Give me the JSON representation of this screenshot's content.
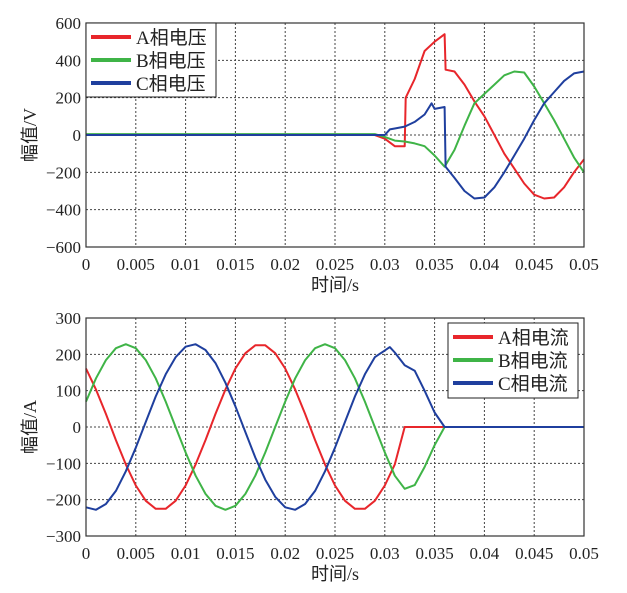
{
  "chart_data": [
    {
      "type": "line",
      "xlabel": "时间/s",
      "ylabel": "幅值/V",
      "xlim": [
        0,
        0.05
      ],
      "ylim": [
        -600,
        600
      ],
      "xticks": [
        "0",
        "0.005",
        "0.01",
        "0.015",
        "0.02",
        "0.025",
        "0.03",
        "0.035",
        "0.04",
        "0.045",
        "0.05"
      ],
      "yticks": [
        "600",
        "400",
        "200",
        "0",
        "−200",
        "−400",
        "−600"
      ],
      "grid": true,
      "legend_position": "top-left",
      "series": [
        {
          "name": "A相电压",
          "color": "#e8262b",
          "points": [
            [
              0,
              0
            ],
            [
              0.029,
              0
            ],
            [
              0.03,
              -20
            ],
            [
              0.031,
              -60
            ],
            [
              0.032,
              -60
            ],
            [
              0.0321,
              200
            ],
            [
              0.033,
              300
            ],
            [
              0.034,
              450
            ],
            [
              0.035,
              500
            ],
            [
              0.036,
              540
            ],
            [
              0.0361,
              350
            ],
            [
              0.037,
              340
            ],
            [
              0.038,
              270
            ],
            [
              0.039,
              180
            ],
            [
              0.04,
              100
            ],
            [
              0.041,
              0
            ],
            [
              0.042,
              -100
            ],
            [
              0.043,
              -180
            ],
            [
              0.044,
              -260
            ],
            [
              0.045,
              -320
            ],
            [
              0.046,
              -340
            ],
            [
              0.047,
              -335
            ],
            [
              0.048,
              -280
            ],
            [
              0.049,
              -200
            ],
            [
              0.05,
              -130
            ]
          ]
        },
        {
          "name": "B相电压",
          "color": "#3fb447",
          "points": [
            [
              0,
              5
            ],
            [
              0.029,
              5
            ],
            [
              0.03,
              -10
            ],
            [
              0.031,
              -30
            ],
            [
              0.032,
              -35
            ],
            [
              0.033,
              -45
            ],
            [
              0.034,
              -60
            ],
            [
              0.035,
              -110
            ],
            [
              0.036,
              -170
            ],
            [
              0.037,
              -80
            ],
            [
              0.038,
              50
            ],
            [
              0.039,
              170
            ],
            [
              0.04,
              220
            ],
            [
              0.041,
              270
            ],
            [
              0.042,
              320
            ],
            [
              0.043,
              340
            ],
            [
              0.044,
              335
            ],
            [
              0.045,
              260
            ],
            [
              0.046,
              170
            ],
            [
              0.047,
              80
            ],
            [
              0.048,
              -20
            ],
            [
              0.049,
              -120
            ],
            [
              0.05,
              -200
            ]
          ]
        },
        {
          "name": "C相电压",
          "color": "#1f3f9e",
          "points": [
            [
              0,
              0
            ],
            [
              0.03,
              0
            ],
            [
              0.0305,
              30
            ],
            [
              0.031,
              35
            ],
            [
              0.032,
              45
            ],
            [
              0.033,
              70
            ],
            [
              0.034,
              110
            ],
            [
              0.0347,
              170
            ],
            [
              0.035,
              140
            ],
            [
              0.036,
              150
            ],
            [
              0.0361,
              -170
            ],
            [
              0.037,
              -230
            ],
            [
              0.038,
              -300
            ],
            [
              0.039,
              -340
            ],
            [
              0.04,
              -335
            ],
            [
              0.041,
              -280
            ],
            [
              0.042,
              -200
            ],
            [
              0.043,
              -110
            ],
            [
              0.044,
              -20
            ],
            [
              0.045,
              80
            ],
            [
              0.046,
              170
            ],
            [
              0.047,
              230
            ],
            [
              0.048,
              290
            ],
            [
              0.049,
              330
            ],
            [
              0.05,
              340
            ]
          ]
        }
      ]
    },
    {
      "type": "line",
      "xlabel": "时间/s",
      "ylabel": "幅值/A",
      "xlim": [
        0,
        0.05
      ],
      "ylim": [
        -300,
        300
      ],
      "xticks": [
        "0",
        "0.005",
        "0.01",
        "0.015",
        "0.02",
        "0.025",
        "0.03",
        "0.035",
        "0.04",
        "0.045",
        "0.05"
      ],
      "yticks": [
        "300",
        "200",
        "100",
        "0",
        "−100",
        "−200",
        "−300"
      ],
      "grid": true,
      "legend_position": "top-right",
      "series": [
        {
          "name": "A相电流",
          "color": "#e8262b",
          "points": [
            [
              0,
              161
            ],
            [
              0.001,
              103
            ],
            [
              0.002,
              36
            ],
            [
              0.003,
              -36
            ],
            [
              0.004,
              -103
            ],
            [
              0.005,
              -161
            ],
            [
              0.006,
              -203
            ],
            [
              0.007,
              -225
            ],
            [
              0.008,
              -225
            ],
            [
              0.009,
              -203
            ],
            [
              0.01,
              -161
            ],
            [
              0.011,
              -103
            ],
            [
              0.012,
              -36
            ],
            [
              0.013,
              36
            ],
            [
              0.014,
              103
            ],
            [
              0.015,
              161
            ],
            [
              0.016,
              203
            ],
            [
              0.017,
              225
            ],
            [
              0.018,
              225
            ],
            [
              0.019,
              203
            ],
            [
              0.02,
              161
            ],
            [
              0.021,
              103
            ],
            [
              0.022,
              36
            ],
            [
              0.023,
              -36
            ],
            [
              0.024,
              -103
            ],
            [
              0.025,
              -161
            ],
            [
              0.026,
              -203
            ],
            [
              0.027,
              -225
            ],
            [
              0.028,
              -225
            ],
            [
              0.029,
              -203
            ],
            [
              0.03,
              -161
            ],
            [
              0.031,
              -103
            ],
            [
              0.032,
              0
            ],
            [
              0.036,
              0
            ]
          ]
        },
        {
          "name": "B相电流",
          "color": "#3fb447",
          "points": [
            [
              0,
              70
            ],
            [
              0.001,
              134
            ],
            [
              0.002,
              184
            ],
            [
              0.003,
              217
            ],
            [
              0.004,
              228
            ],
            [
              0.005,
              217
            ],
            [
              0.006,
              184
            ],
            [
              0.007,
              134
            ],
            [
              0.008,
              70
            ],
            [
              0.009,
              0
            ],
            [
              0.01,
              -70
            ],
            [
              0.011,
              -134
            ],
            [
              0.012,
              -184
            ],
            [
              0.013,
              -217
            ],
            [
              0.014,
              -228
            ],
            [
              0.015,
              -217
            ],
            [
              0.016,
              -184
            ],
            [
              0.017,
              -134
            ],
            [
              0.018,
              -70
            ],
            [
              0.019,
              0
            ],
            [
              0.02,
              70
            ],
            [
              0.021,
              134
            ],
            [
              0.022,
              184
            ],
            [
              0.023,
              217
            ],
            [
              0.024,
              228
            ],
            [
              0.025,
              217
            ],
            [
              0.026,
              184
            ],
            [
              0.027,
              134
            ],
            [
              0.028,
              70
            ],
            [
              0.029,
              0
            ],
            [
              0.03,
              -70
            ],
            [
              0.031,
              -134
            ],
            [
              0.032,
              -170
            ],
            [
              0.033,
              -160
            ],
            [
              0.034,
              -110
            ],
            [
              0.035,
              -50
            ],
            [
              0.036,
              0
            ]
          ]
        },
        {
          "name": "C相电流",
          "color": "#1f3f9e",
          "points": [
            [
              0,
              -221
            ],
            [
              0.001,
              -228
            ],
            [
              0.002,
              -212
            ],
            [
              0.003,
              -176
            ],
            [
              0.004,
              -122
            ],
            [
              0.005,
              -57
            ],
            [
              0.006,
              14
            ],
            [
              0.007,
              84
            ],
            [
              0.008,
              145
            ],
            [
              0.009,
              192
            ],
            [
              0.01,
              221
            ],
            [
              0.011,
              228
            ],
            [
              0.012,
              212
            ],
            [
              0.013,
              176
            ],
            [
              0.014,
              122
            ],
            [
              0.015,
              57
            ],
            [
              0.016,
              -14
            ],
            [
              0.017,
              -84
            ],
            [
              0.018,
              -145
            ],
            [
              0.019,
              -192
            ],
            [
              0.02,
              -221
            ],
            [
              0.021,
              -228
            ],
            [
              0.022,
              -212
            ],
            [
              0.023,
              -176
            ],
            [
              0.024,
              -122
            ],
            [
              0.025,
              -57
            ],
            [
              0.026,
              14
            ],
            [
              0.027,
              84
            ],
            [
              0.028,
              145
            ],
            [
              0.029,
              192
            ],
            [
              0.0305,
              220
            ],
            [
              0.031,
              205
            ],
            [
              0.032,
              170
            ],
            [
              0.033,
              155
            ],
            [
              0.034,
              100
            ],
            [
              0.035,
              40
            ],
            [
              0.036,
              0
            ],
            [
              0.05,
              0
            ]
          ]
        }
      ]
    }
  ]
}
